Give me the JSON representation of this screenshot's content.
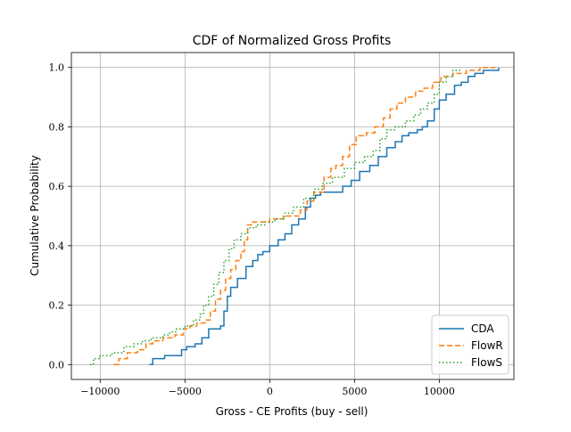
{
  "chart_data": {
    "type": "line",
    "title": "CDF of Normalized Gross Profits",
    "xlabel": "Gross - CE Profits (buy - sell)",
    "ylabel": "Cumulative Probability",
    "xlim": [
      -11700,
      14400
    ],
    "ylim": [
      -0.05,
      1.05
    ],
    "x_ticks": [
      -10000,
      -5000,
      0,
      5000,
      10000
    ],
    "x_tick_labels": [
      "−10000",
      "−5000",
      "0",
      "5000",
      "10000"
    ],
    "y_ticks": [
      0.0,
      0.2,
      0.4,
      0.6,
      0.8,
      1.0
    ],
    "y_tick_labels": [
      "0.0",
      "0.2",
      "0.4",
      "0.6",
      "0.8",
      "1.0"
    ],
    "grid": true,
    "legend_position": "lower-right",
    "series": [
      {
        "name": "CDA",
        "color": "#1f77b4",
        "style": "solid",
        "points": [
          [
            -7100,
            0.0
          ],
          [
            -6900,
            0.02
          ],
          [
            -6200,
            0.03
          ],
          [
            -5200,
            0.05
          ],
          [
            -4900,
            0.06
          ],
          [
            -4400,
            0.07
          ],
          [
            -4000,
            0.09
          ],
          [
            -3600,
            0.12
          ],
          [
            -2900,
            0.13
          ],
          [
            -2700,
            0.18
          ],
          [
            -2500,
            0.23
          ],
          [
            -2300,
            0.26
          ],
          [
            -1900,
            0.29
          ],
          [
            -1400,
            0.33
          ],
          [
            -1000,
            0.35
          ],
          [
            -700,
            0.37
          ],
          [
            -400,
            0.38
          ],
          [
            0,
            0.4
          ],
          [
            500,
            0.42
          ],
          [
            900,
            0.44
          ],
          [
            1300,
            0.47
          ],
          [
            1700,
            0.49
          ],
          [
            2100,
            0.53
          ],
          [
            2400,
            0.56
          ],
          [
            2700,
            0.57
          ],
          [
            3000,
            0.58
          ],
          [
            4200,
            0.58
          ],
          [
            4300,
            0.6
          ],
          [
            4800,
            0.62
          ],
          [
            5300,
            0.65
          ],
          [
            5900,
            0.67
          ],
          [
            6400,
            0.7
          ],
          [
            6900,
            0.73
          ],
          [
            7400,
            0.75
          ],
          [
            7800,
            0.77
          ],
          [
            8200,
            0.78
          ],
          [
            8700,
            0.79
          ],
          [
            9000,
            0.8
          ],
          [
            9300,
            0.82
          ],
          [
            9700,
            0.86
          ],
          [
            10000,
            0.89
          ],
          [
            10400,
            0.91
          ],
          [
            10900,
            0.94
          ],
          [
            11300,
            0.95
          ],
          [
            11700,
            0.97
          ],
          [
            12100,
            0.98
          ],
          [
            12600,
            0.99
          ],
          [
            13500,
            1.0
          ]
        ]
      },
      {
        "name": "FlowR",
        "color": "#ff7f0e",
        "style": "dashed",
        "points": [
          [
            -9200,
            0.0
          ],
          [
            -8900,
            0.02
          ],
          [
            -8400,
            0.04
          ],
          [
            -7800,
            0.05
          ],
          [
            -7300,
            0.07
          ],
          [
            -6900,
            0.08
          ],
          [
            -6300,
            0.09
          ],
          [
            -5600,
            0.1
          ],
          [
            -5100,
            0.12
          ],
          [
            -4700,
            0.13
          ],
          [
            -4300,
            0.14
          ],
          [
            -3800,
            0.15
          ],
          [
            -3500,
            0.18
          ],
          [
            -3200,
            0.22
          ],
          [
            -2900,
            0.25
          ],
          [
            -2600,
            0.29
          ],
          [
            -2300,
            0.32
          ],
          [
            -2000,
            0.35
          ],
          [
            -1700,
            0.38
          ],
          [
            -1500,
            0.42
          ],
          [
            -1300,
            0.47
          ],
          [
            -1000,
            0.48
          ],
          [
            0,
            0.49
          ],
          [
            800,
            0.5
          ],
          [
            1300,
            0.5
          ],
          [
            1800,
            0.52
          ],
          [
            2200,
            0.55
          ],
          [
            2600,
            0.58
          ],
          [
            3200,
            0.63
          ],
          [
            3600,
            0.66
          ],
          [
            3900,
            0.67
          ],
          [
            4300,
            0.7
          ],
          [
            4700,
            0.74
          ],
          [
            5100,
            0.77
          ],
          [
            5700,
            0.78
          ],
          [
            6200,
            0.8
          ],
          [
            6700,
            0.83
          ],
          [
            7100,
            0.86
          ],
          [
            7500,
            0.88
          ],
          [
            8000,
            0.9
          ],
          [
            8600,
            0.92
          ],
          [
            9100,
            0.93
          ],
          [
            9600,
            0.95
          ],
          [
            10100,
            0.97
          ],
          [
            10800,
            0.98
          ],
          [
            11600,
            0.99
          ],
          [
            12400,
            1.0
          ],
          [
            13300,
            1.0
          ]
        ]
      },
      {
        "name": "FlowS",
        "color": "#2ca02c",
        "style": "dotted",
        "points": [
          [
            -10600,
            0.0
          ],
          [
            -10400,
            0.02
          ],
          [
            -10000,
            0.03
          ],
          [
            -9300,
            0.04
          ],
          [
            -8600,
            0.06
          ],
          [
            -8000,
            0.07
          ],
          [
            -7500,
            0.08
          ],
          [
            -7000,
            0.09
          ],
          [
            -6300,
            0.1
          ],
          [
            -5900,
            0.11
          ],
          [
            -5500,
            0.12
          ],
          [
            -5000,
            0.13
          ],
          [
            -4500,
            0.15
          ],
          [
            -4100,
            0.17
          ],
          [
            -3900,
            0.2
          ],
          [
            -3600,
            0.23
          ],
          [
            -3300,
            0.27
          ],
          [
            -3000,
            0.31
          ],
          [
            -2700,
            0.35
          ],
          [
            -2400,
            0.39
          ],
          [
            -2100,
            0.42
          ],
          [
            -1700,
            0.44
          ],
          [
            -1300,
            0.46
          ],
          [
            -800,
            0.47
          ],
          [
            -300,
            0.48
          ],
          [
            300,
            0.49
          ],
          [
            900,
            0.51
          ],
          [
            1400,
            0.53
          ],
          [
            2000,
            0.56
          ],
          [
            2600,
            0.59
          ],
          [
            3100,
            0.61
          ],
          [
            3700,
            0.63
          ],
          [
            4400,
            0.66
          ],
          [
            5000,
            0.68
          ],
          [
            5600,
            0.7
          ],
          [
            6100,
            0.72
          ],
          [
            6500,
            0.76
          ],
          [
            6900,
            0.79
          ],
          [
            7400,
            0.8
          ],
          [
            8000,
            0.82
          ],
          [
            8500,
            0.84
          ],
          [
            8900,
            0.86
          ],
          [
            9300,
            0.88
          ],
          [
            9700,
            0.91
          ],
          [
            10000,
            0.95
          ],
          [
            10400,
            0.97
          ],
          [
            10800,
            0.99
          ],
          [
            11200,
            1.0
          ]
        ]
      }
    ]
  }
}
